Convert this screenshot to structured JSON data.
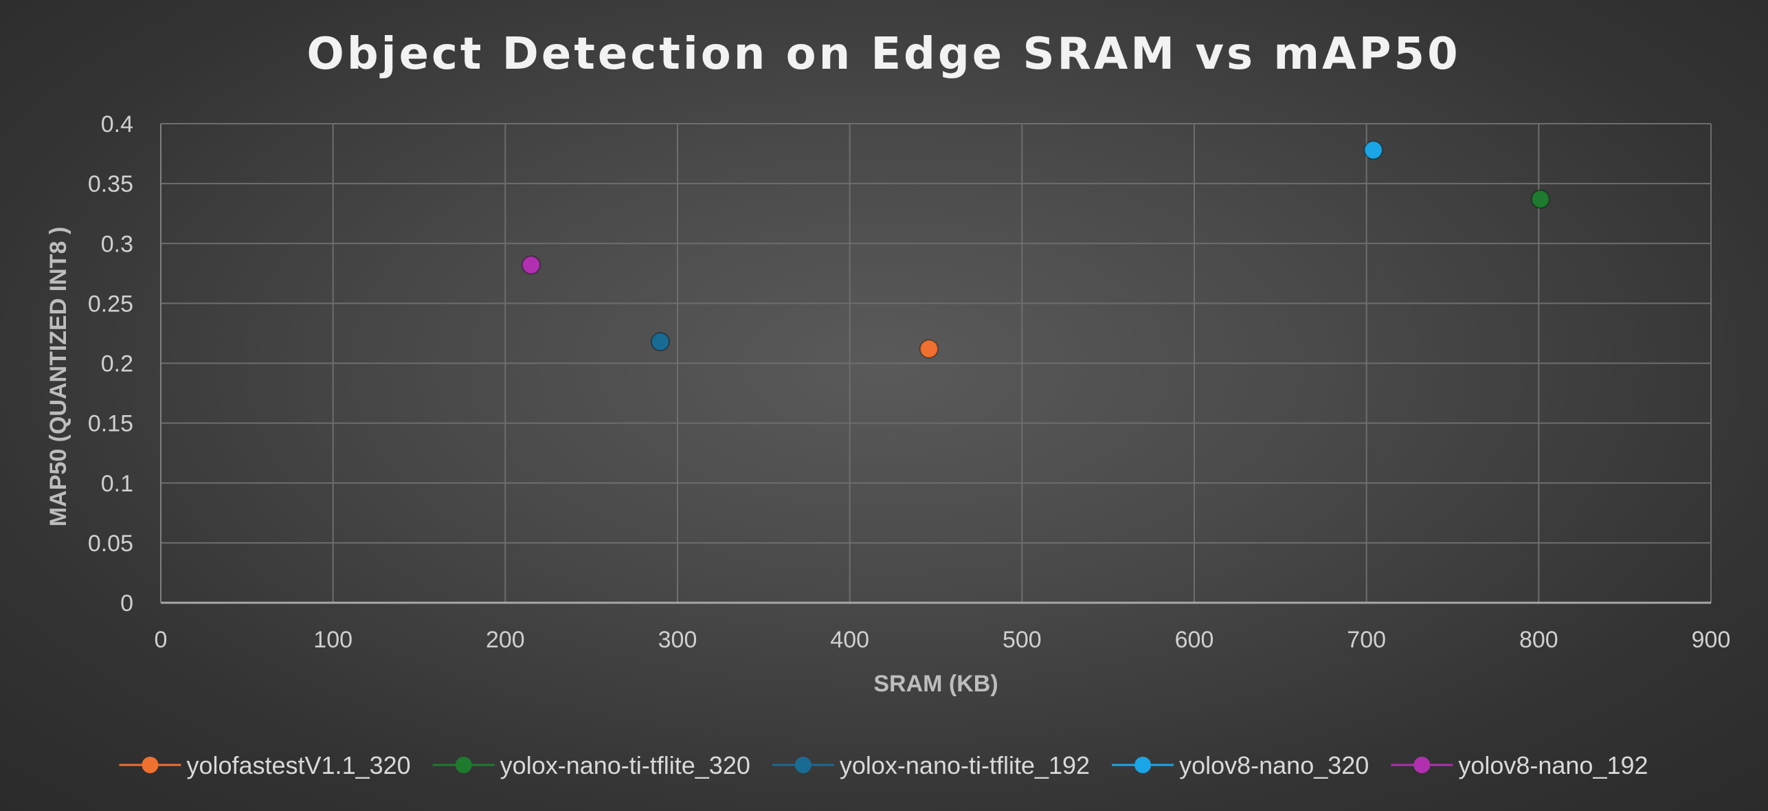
{
  "chart_data": {
    "type": "scatter",
    "title": "Object Detection on Edge SRAM vs mAP50",
    "xlabel": "SRAM (KB)",
    "ylabel": "MAP50 (QUANTIZED INT8 )",
    "xlim": [
      0,
      900
    ],
    "ylim": [
      0,
      0.4
    ],
    "x_ticks": [
      "0",
      "100",
      "200",
      "300",
      "400",
      "500",
      "600",
      "700",
      "800",
      "900"
    ],
    "y_ticks": [
      "0",
      "0.05",
      "0.1",
      "0.15",
      "0.2",
      "0.25",
      "0.3",
      "0.35",
      "0.4"
    ],
    "grid": true,
    "legend_position": "bottom",
    "series": [
      {
        "name": "yolofastestV1.1_320",
        "color": "#f07030",
        "points": [
          {
            "x": 446,
            "y": 0.212
          }
        ]
      },
      {
        "name": "yolox-nano-ti-tflite_320",
        "color": "#1e7a2e",
        "points": [
          {
            "x": 801,
            "y": 0.337
          }
        ]
      },
      {
        "name": "yolox-nano-ti-tflite_192",
        "color": "#1a6b94",
        "points": [
          {
            "x": 290,
            "y": 0.218
          }
        ]
      },
      {
        "name": "yolov8-nano_320",
        "color": "#1aa6e6",
        "points": [
          {
            "x": 704,
            "y": 0.378
          }
        ]
      },
      {
        "name": "yolov8-nano_192",
        "color": "#b030b0",
        "points": [
          {
            "x": 215,
            "y": 0.282
          }
        ]
      }
    ]
  }
}
